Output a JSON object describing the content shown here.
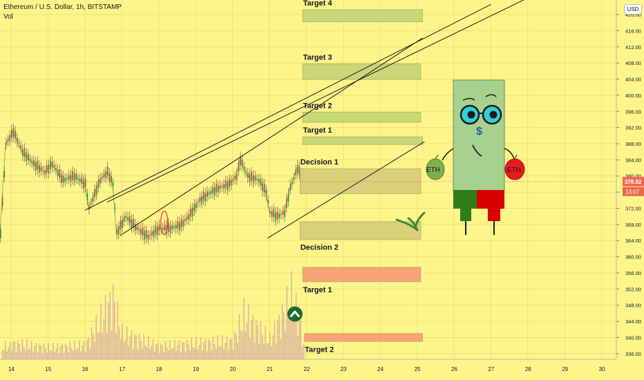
{
  "header": {
    "title": "Ethereum / U.S. Dollar, 1h, BITSTAMP",
    "volume_label": "Vol",
    "currency": "USD"
  },
  "price_marker": {
    "price": "378.62",
    "countdown": "13:07"
  },
  "chart_data": {
    "type": "candlestick",
    "title": "Ethereum / U.S. Dollar, 1h, BITSTAMP",
    "x_ticks": [
      "14",
      "15",
      "16",
      "17",
      "18",
      "19",
      "20",
      "21",
      "22",
      "23",
      "24",
      "25",
      "26",
      "27",
      "28",
      "29",
      "30"
    ],
    "xlim": [
      13.7,
      30.4
    ],
    "y_ticks": [
      336,
      340,
      344,
      348,
      352,
      356,
      360,
      364,
      368,
      372,
      376,
      380,
      384,
      388,
      392,
      396,
      400,
      404,
      408,
      412,
      416,
      420
    ],
    "ylim": [
      334.6,
      423.6
    ],
    "current_price": 378.62,
    "price_path": [
      {
        "day": 13.7,
        "price": 366
      },
      {
        "day": 13.85,
        "price": 388
      },
      {
        "day": 14.05,
        "price": 391
      },
      {
        "day": 14.3,
        "price": 386
      },
      {
        "day": 14.6,
        "price": 383
      },
      {
        "day": 14.9,
        "price": 381
      },
      {
        "day": 15.1,
        "price": 383
      },
      {
        "day": 15.4,
        "price": 379
      },
      {
        "day": 15.7,
        "price": 380
      },
      {
        "day": 16.0,
        "price": 378
      },
      {
        "day": 16.1,
        "price": 372
      },
      {
        "day": 16.4,
        "price": 379
      },
      {
        "day": 16.6,
        "price": 381
      },
      {
        "day": 16.75,
        "price": 378
      },
      {
        "day": 16.85,
        "price": 366
      },
      {
        "day": 17.1,
        "price": 370
      },
      {
        "day": 17.4,
        "price": 367
      },
      {
        "day": 17.7,
        "price": 365
      },
      {
        "day": 18.0,
        "price": 367
      },
      {
        "day": 18.3,
        "price": 367
      },
      {
        "day": 18.6,
        "price": 368
      },
      {
        "day": 18.8,
        "price": 370
      },
      {
        "day": 19.1,
        "price": 374
      },
      {
        "day": 19.4,
        "price": 376
      },
      {
        "day": 19.6,
        "price": 377
      },
      {
        "day": 19.9,
        "price": 378
      },
      {
        "day": 20.1,
        "price": 380
      },
      {
        "day": 20.2,
        "price": 384
      },
      {
        "day": 20.4,
        "price": 380
      },
      {
        "day": 20.7,
        "price": 379
      },
      {
        "day": 20.9,
        "price": 376
      },
      {
        "day": 21.0,
        "price": 371
      },
      {
        "day": 21.2,
        "price": 370
      },
      {
        "day": 21.4,
        "price": 371
      },
      {
        "day": 21.55,
        "price": 377
      },
      {
        "day": 21.75,
        "price": 382
      },
      {
        "day": 21.9,
        "price": 379
      }
    ],
    "volume_path": [
      {
        "day": 14.0,
        "vol": 0.25
      },
      {
        "day": 15.0,
        "vol": 0.18
      },
      {
        "day": 16.0,
        "vol": 0.22
      },
      {
        "day": 16.75,
        "vol": 0.95
      },
      {
        "day": 17.0,
        "vol": 0.4
      },
      {
        "day": 18.0,
        "vol": 0.2
      },
      {
        "day": 19.0,
        "vol": 0.25
      },
      {
        "day": 20.0,
        "vol": 0.28
      },
      {
        "day": 20.3,
        "vol": 0.7
      },
      {
        "day": 21.0,
        "vol": 0.3
      },
      {
        "day": 21.6,
        "vol": 1.0
      },
      {
        "day": 21.9,
        "vol": 0.35
      }
    ],
    "zones": [
      {
        "label": "Target 4",
        "color": "#c8d678",
        "x": [
          21.9,
          25.15
        ],
        "y": [
          418.2,
          421.2
        ],
        "label_pos": "above"
      },
      {
        "label": "Target 3",
        "color": "#c8d678",
        "x": [
          21.9,
          25.1
        ],
        "y": [
          403.9,
          407.8
        ],
        "label_pos": "above"
      },
      {
        "label": "Target 2",
        "color": "#c8d678",
        "x": [
          21.9,
          25.1
        ],
        "y": [
          393.3,
          395.8
        ],
        "label_pos": "above"
      },
      {
        "label": "Target 1",
        "color": "#c8d678",
        "x": [
          21.9,
          25.15
        ],
        "y": [
          387.8,
          389.7
        ],
        "label_pos": "above"
      },
      {
        "label": "Decision 1",
        "color": "#d8cf7c",
        "x": [
          21.83,
          25.1
        ],
        "y": [
          375.6,
          381.8
        ],
        "label_pos": "above"
      },
      {
        "label": "Decision 2",
        "color": "#d8cf7c",
        "x": [
          21.83,
          25.1
        ],
        "y": [
          364.3,
          368.7
        ],
        "label_pos": "below"
      },
      {
        "label": "Target 1",
        "color": "#fb9d78",
        "x": [
          21.9,
          25.1
        ],
        "y": [
          353.8,
          357.4
        ],
        "label_pos": "below"
      },
      {
        "label": "Target 2",
        "color": "#fb9d78",
        "x": [
          21.95,
          25.15
        ],
        "y": [
          339.0,
          341.0
        ],
        "label_pos": "below"
      }
    ],
    "trendlines": [
      {
        "from": [
          16.0,
          371.5
        ],
        "to": [
          27.0,
          422.5
        ]
      },
      {
        "from": [
          16.6,
          373.5
        ],
        "to": [
          28.2,
          425.0
        ]
      },
      {
        "from": [
          16.95,
          365.2
        ],
        "to": [
          25.15,
          414.2
        ]
      },
      {
        "from": [
          20.95,
          364.6
        ],
        "to": [
          25.2,
          388.5
        ]
      }
    ],
    "annotations": [
      {
        "type": "ellipse",
        "color": "#e34a4a",
        "day": 18.15,
        "price": 368.4
      },
      {
        "type": "arrow-up-circle",
        "color": "#1b6b32",
        "day": 21.69,
        "price": 345.8
      }
    ],
    "colors": {
      "background": "#fef58a",
      "price_fill": "#a8d18d",
      "price_line": "#3e8e4c",
      "volume": "#d5a5a5",
      "trendline": "#1c1c1c",
      "price_marker": "#f0685b"
    }
  },
  "mascot": {
    "body_color": "#a8d18d",
    "base_left_color": "#2f7d19",
    "base_right_color": "#d80000",
    "left_coin_label": "ETH",
    "right_coin_label": "ETH",
    "face_symbol": "$"
  }
}
